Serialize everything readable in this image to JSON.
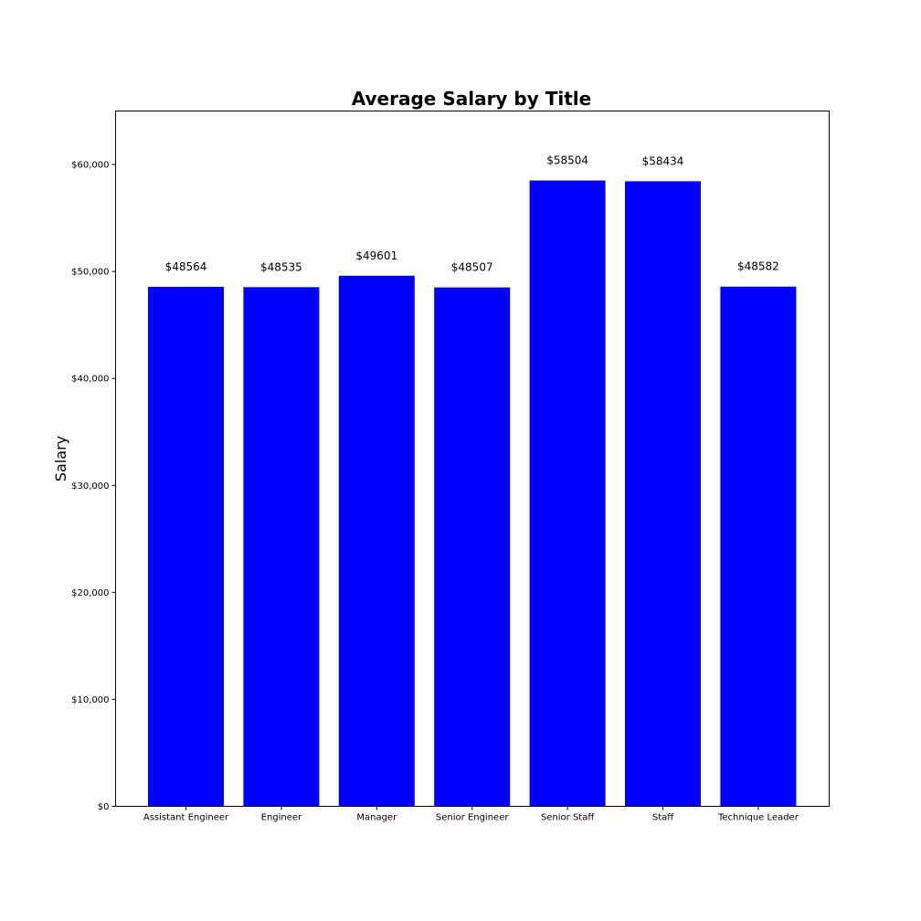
{
  "chart_data": {
    "type": "bar",
    "title": "Average Salary by Title",
    "xlabel": "",
    "ylabel": "Salary",
    "categories": [
      "Assistant Engineer",
      "Engineer",
      "Manager",
      "Senior Engineer",
      "Senior Staff",
      "Staff",
      "Technique Leader"
    ],
    "values": [
      48564,
      48535,
      49601,
      48507,
      58504,
      58434,
      48582
    ],
    "data_labels": [
      "$48564",
      "$48535",
      "$49601",
      "$48507",
      "$58504",
      "$58434",
      "$48582"
    ],
    "ylim": [
      0,
      65000
    ],
    "yticks": [
      0,
      10000,
      20000,
      30000,
      40000,
      50000,
      60000
    ],
    "ytick_labels": [
      "$0",
      "$10,000",
      "$20,000",
      "$30,000",
      "$40,000",
      "$50,000",
      "$60,000"
    ],
    "bar_color": "#0000ff",
    "grid": false,
    "legend": "none"
  }
}
